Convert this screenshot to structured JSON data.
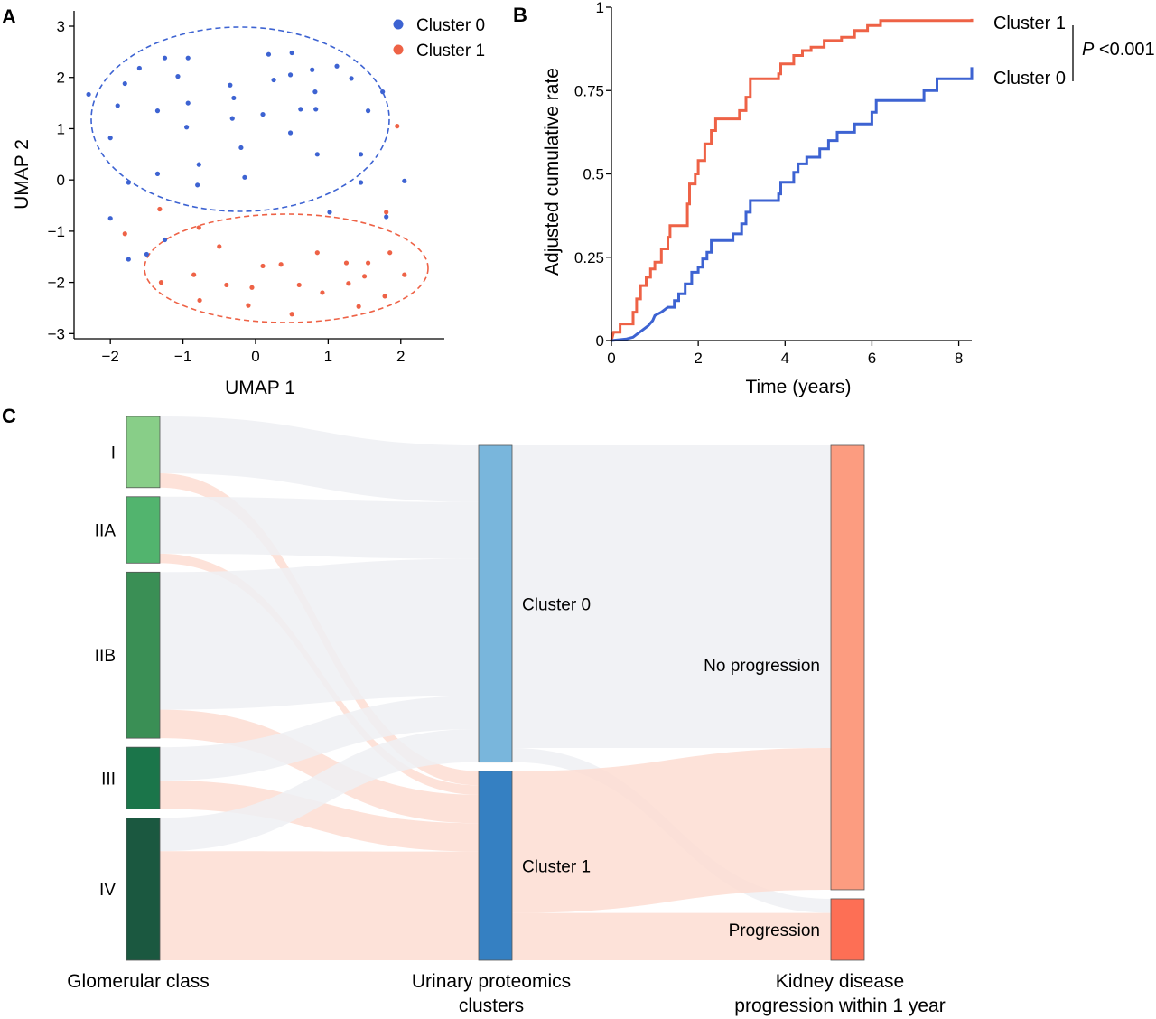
{
  "panel_labels": {
    "a": "A",
    "b": "B",
    "c": "C"
  },
  "colors": {
    "cluster0": "#3D63D2",
    "cluster1": "#EE6246",
    "link_grey": "#EEF0F3",
    "link_salmon": "#FDDDD2",
    "stage_I": "#88CE88",
    "stage_IIA": "#52B46E",
    "stage_IIB": "#3A8F55",
    "stage_III": "#1B754A",
    "stage_IV": "#1B5840",
    "clust0_node": "#79B6DC",
    "clust1_node": "#3580C2",
    "noprog_node": "#FC9C80",
    "prog_node": "#FD6F55"
  },
  "chart_data": [
    {
      "type": "scatter",
      "xlabel": "UMAP 1",
      "ylabel": "UMAP 2",
      "xlim": [
        -2.5,
        2.6
      ],
      "ylim": [
        -3.1,
        3.3
      ],
      "xticks": [
        "−2",
        "−1",
        "0",
        "1",
        "2"
      ],
      "xtick_values": [
        -2,
        -1,
        0,
        1,
        2
      ],
      "yticks": [
        "−3",
        "−2",
        "−1",
        "0",
        "1",
        "2",
        "3"
      ],
      "ytick_values": [
        -3,
        -2,
        -1,
        0,
        1,
        2,
        3
      ],
      "legend": [
        "Cluster 0",
        "Cluster 1"
      ],
      "legend_position": "top-right",
      "series": [
        {
          "name": "Cluster 0",
          "points": [
            [
              -2.3,
              1.67
            ],
            [
              -1.8,
              1.88
            ],
            [
              -1.9,
              1.45
            ],
            [
              -1.6,
              2.18
            ],
            [
              -1.35,
              1.35
            ],
            [
              -1.25,
              2.38
            ],
            [
              -1.07,
              2.02
            ],
            [
              -0.93,
              2.38
            ],
            [
              -0.93,
              1.5
            ],
            [
              -0.95,
              1.03
            ],
            [
              -0.35,
              1.85
            ],
            [
              -0.3,
              1.6
            ],
            [
              -0.32,
              1.2
            ],
            [
              -0.2,
              0.63
            ],
            [
              -0.78,
              0.3
            ],
            [
              -0.8,
              -0.1
            ],
            [
              0.18,
              2.45
            ],
            [
              0.1,
              1.28
            ],
            [
              0.25,
              1.95
            ],
            [
              0.48,
              2.05
            ],
            [
              0.5,
              2.48
            ],
            [
              0.48,
              0.92
            ],
            [
              0.62,
              1.38
            ],
            [
              0.78,
              2.15
            ],
            [
              0.82,
              1.72
            ],
            [
              0.83,
              1.38
            ],
            [
              0.85,
              0.5
            ],
            [
              1.12,
              2.22
            ],
            [
              1.32,
              1.98
            ],
            [
              1.55,
              1.35
            ],
            [
              1.45,
              0.5
            ],
            [
              1.45,
              -0.05
            ],
            [
              1.75,
              1.72
            ],
            [
              1.8,
              -0.72
            ],
            [
              2.05,
              -0.02
            ],
            [
              -2.0,
              0.82
            ],
            [
              -1.75,
              -0.05
            ],
            [
              -1.35,
              0.12
            ],
            [
              -0.15,
              0.05
            ],
            [
              -2.0,
              -0.75
            ],
            [
              -1.5,
              -1.45
            ],
            [
              -1.75,
              -1.55
            ],
            [
              -1.25,
              -1.17
            ],
            [
              1.02,
              -0.63
            ]
          ]
        },
        {
          "name": "Cluster 1",
          "points": [
            [
              1.95,
              1.05
            ],
            [
              1.8,
              -0.63
            ],
            [
              -1.8,
              -1.05
            ],
            [
              -1.32,
              -0.57
            ],
            [
              -0.78,
              -0.93
            ],
            [
              -0.5,
              -1.3
            ],
            [
              -1.3,
              -2.0
            ],
            [
              -0.85,
              -1.85
            ],
            [
              -0.77,
              -2.35
            ],
            [
              -0.4,
              -2.05
            ],
            [
              -0.1,
              -2.45
            ],
            [
              -0.05,
              -2.1
            ],
            [
              0.1,
              -1.68
            ],
            [
              0.35,
              -1.65
            ],
            [
              0.5,
              -2.62
            ],
            [
              0.6,
              -2.05
            ],
            [
              0.85,
              -1.42
            ],
            [
              0.92,
              -2.2
            ],
            [
              1.25,
              -1.62
            ],
            [
              1.28,
              -2.02
            ],
            [
              1.42,
              -2.47
            ],
            [
              1.5,
              -1.88
            ],
            [
              1.55,
              -1.62
            ],
            [
              1.78,
              -2.27
            ],
            [
              1.85,
              -1.42
            ],
            [
              2.05,
              -1.85
            ]
          ]
        }
      ]
    },
    {
      "type": "line",
      "xlabel": "Time (years)",
      "ylabel": "Adjusted cumulative rate",
      "xlim": [
        0,
        8.3
      ],
      "ylim": [
        0,
        1
      ],
      "xticks": [
        "0",
        "2",
        "4",
        "6",
        "8"
      ],
      "xtick_values": [
        0,
        2,
        4,
        6,
        8
      ],
      "yticks": [
        "0",
        "0.25",
        "0.5",
        "0.75",
        "1"
      ],
      "ytick_values": [
        0,
        0.25,
        0.5,
        0.75,
        1
      ],
      "annotation": {
        "label_italic": "P",
        "label_rest": " <0.001"
      },
      "series": [
        {
          "name": "Cluster 1",
          "points": [
            [
              0,
              0
            ],
            [
              0.05,
              0.025
            ],
            [
              0.2,
              0.025
            ],
            [
              0.2,
              0.05
            ],
            [
              0.5,
              0.05
            ],
            [
              0.5,
              0.085
            ],
            [
              0.58,
              0.085
            ],
            [
              0.58,
              0.125
            ],
            [
              0.67,
              0.125
            ],
            [
              0.67,
              0.165
            ],
            [
              0.8,
              0.165
            ],
            [
              0.8,
              0.19
            ],
            [
              0.9,
              0.19
            ],
            [
              0.9,
              0.215
            ],
            [
              1.0,
              0.215
            ],
            [
              1.0,
              0.235
            ],
            [
              1.15,
              0.235
            ],
            [
              1.15,
              0.275
            ],
            [
              1.3,
              0.275
            ],
            [
              1.3,
              0.31
            ],
            [
              1.35,
              0.31
            ],
            [
              1.35,
              0.345
            ],
            [
              1.75,
              0.345
            ],
            [
              1.75,
              0.41
            ],
            [
              1.8,
              0.41
            ],
            [
              1.8,
              0.47
            ],
            [
              1.93,
              0.47
            ],
            [
              1.93,
              0.5
            ],
            [
              2.0,
              0.5
            ],
            [
              2.0,
              0.54
            ],
            [
              2.15,
              0.54
            ],
            [
              2.15,
              0.59
            ],
            [
              2.3,
              0.59
            ],
            [
              2.3,
              0.63
            ],
            [
              2.4,
              0.63
            ],
            [
              2.4,
              0.665
            ],
            [
              2.95,
              0.665
            ],
            [
              2.95,
              0.69
            ],
            [
              3.1,
              0.69
            ],
            [
              3.1,
              0.73
            ],
            [
              3.2,
              0.73
            ],
            [
              3.2,
              0.785
            ],
            [
              3.85,
              0.785
            ],
            [
              3.85,
              0.8
            ],
            [
              3.9,
              0.8
            ],
            [
              3.9,
              0.83
            ],
            [
              4.2,
              0.83
            ],
            [
              4.2,
              0.855
            ],
            [
              4.4,
              0.855
            ],
            [
              4.4,
              0.87
            ],
            [
              4.6,
              0.87
            ],
            [
              4.6,
              0.88
            ],
            [
              4.9,
              0.88
            ],
            [
              4.9,
              0.9
            ],
            [
              5.3,
              0.9
            ],
            [
              5.3,
              0.91
            ],
            [
              5.6,
              0.91
            ],
            [
              5.6,
              0.93
            ],
            [
              5.9,
              0.93
            ],
            [
              5.9,
              0.945
            ],
            [
              6.2,
              0.945
            ],
            [
              6.2,
              0.96
            ],
            [
              8.3,
              0.96
            ],
            [
              8.3,
              0.965
            ]
          ]
        },
        {
          "name": "Cluster 0",
          "points": [
            [
              0,
              0
            ],
            [
              0.35,
              0.005
            ],
            [
              0.5,
              0.01
            ],
            [
              0.6,
              0.02
            ],
            [
              0.7,
              0.03
            ],
            [
              0.85,
              0.045
            ],
            [
              0.95,
              0.06
            ],
            [
              1.0,
              0.075
            ],
            [
              1.15,
              0.085
            ],
            [
              1.3,
              0.1
            ],
            [
              1.45,
              0.1
            ],
            [
              1.45,
              0.12
            ],
            [
              1.55,
              0.12
            ],
            [
              1.55,
              0.14
            ],
            [
              1.7,
              0.14
            ],
            [
              1.7,
              0.17
            ],
            [
              1.85,
              0.17
            ],
            [
              1.85,
              0.205
            ],
            [
              2.0,
              0.205
            ],
            [
              2.0,
              0.22
            ],
            [
              2.1,
              0.22
            ],
            [
              2.1,
              0.245
            ],
            [
              2.2,
              0.245
            ],
            [
              2.2,
              0.265
            ],
            [
              2.3,
              0.265
            ],
            [
              2.3,
              0.3
            ],
            [
              2.8,
              0.3
            ],
            [
              2.8,
              0.32
            ],
            [
              3.0,
              0.32
            ],
            [
              3.0,
              0.35
            ],
            [
              3.1,
              0.35
            ],
            [
              3.1,
              0.385
            ],
            [
              3.2,
              0.385
            ],
            [
              3.2,
              0.42
            ],
            [
              3.85,
              0.42
            ],
            [
              3.85,
              0.44
            ],
            [
              3.9,
              0.44
            ],
            [
              3.9,
              0.475
            ],
            [
              4.2,
              0.475
            ],
            [
              4.2,
              0.505
            ],
            [
              4.3,
              0.505
            ],
            [
              4.3,
              0.53
            ],
            [
              4.5,
              0.53
            ],
            [
              4.5,
              0.55
            ],
            [
              4.8,
              0.55
            ],
            [
              4.8,
              0.575
            ],
            [
              5.0,
              0.575
            ],
            [
              5.0,
              0.6
            ],
            [
              5.2,
              0.6
            ],
            [
              5.2,
              0.625
            ],
            [
              5.6,
              0.625
            ],
            [
              5.6,
              0.65
            ],
            [
              6.0,
              0.65
            ],
            [
              6.0,
              0.685
            ],
            [
              6.1,
              0.685
            ],
            [
              6.1,
              0.72
            ],
            [
              7.2,
              0.72
            ],
            [
              7.2,
              0.75
            ],
            [
              7.5,
              0.75
            ],
            [
              7.5,
              0.785
            ],
            [
              8.3,
              0.785
            ],
            [
              8.3,
              0.82
            ]
          ]
        }
      ]
    },
    {
      "type": "sankey",
      "axis_labels": [
        "Glomerular class",
        "Urinary proteomics clusters",
        "Kidney disease progression within 1 year"
      ],
      "nodes": [
        {
          "id": "I",
          "label": "I",
          "column": 0,
          "value": 15
        },
        {
          "id": "IIA",
          "label": "IIA",
          "column": 0,
          "value": 14
        },
        {
          "id": "IIB",
          "label": "IIB",
          "column": 0,
          "value": 35
        },
        {
          "id": "III",
          "label": "III",
          "column": 0,
          "value": 13
        },
        {
          "id": "IV",
          "label": "IV",
          "column": 0,
          "value": 30
        },
        {
          "id": "C0",
          "label": "Cluster 0",
          "column": 1,
          "value": 67
        },
        {
          "id": "C1",
          "label": "Cluster 1",
          "column": 1,
          "value": 40
        },
        {
          "id": "NP",
          "label": "No progression",
          "column": 2,
          "value": 94
        },
        {
          "id": "P",
          "label": "Progression",
          "column": 2,
          "value": 13
        }
      ],
      "links": [
        {
          "source": "I",
          "target": "C0",
          "value": 12
        },
        {
          "source": "I",
          "target": "C1",
          "value": 3
        },
        {
          "source": "IIA",
          "target": "C0",
          "value": 12
        },
        {
          "source": "IIA",
          "target": "C1",
          "value": 2
        },
        {
          "source": "IIB",
          "target": "C0",
          "value": 29
        },
        {
          "source": "IIB",
          "target": "C1",
          "value": 6
        },
        {
          "source": "III",
          "target": "C0",
          "value": 7
        },
        {
          "source": "III",
          "target": "C1",
          "value": 6
        },
        {
          "source": "IV",
          "target": "C0",
          "value": 7
        },
        {
          "source": "IV",
          "target": "C1",
          "value": 23
        },
        {
          "source": "C0",
          "target": "NP",
          "value": 64
        },
        {
          "source": "C0",
          "target": "P",
          "value": 3
        },
        {
          "source": "C1",
          "target": "NP",
          "value": 30
        },
        {
          "source": "C1",
          "target": "P",
          "value": 10
        }
      ]
    }
  ]
}
